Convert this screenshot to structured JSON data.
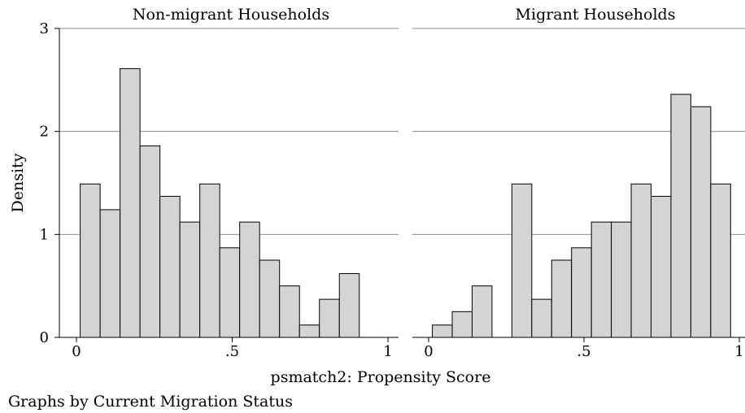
{
  "figure": {
    "ylabel": "Density",
    "xlabel": "psmatch2: Propensity Score",
    "note": "Graphs by Current Migration Status"
  },
  "chart_data": [
    {
      "type": "bar",
      "title": "Non-migrant Households",
      "xlim": [
        0,
        1
      ],
      "ylim": [
        0,
        3
      ],
      "xticks": [
        {
          "value": 0,
          "label": "0"
        },
        {
          "value": 0.5,
          "label": ".5"
        },
        {
          "value": 1,
          "label": "1"
        }
      ],
      "yticks": [
        {
          "value": 0,
          "label": "0"
        },
        {
          "value": 1,
          "label": "1"
        },
        {
          "value": 2,
          "label": "2"
        },
        {
          "value": 3,
          "label": "3"
        }
      ],
      "grid": true,
      "bins": [
        {
          "x0": 0.012,
          "x1": 0.076,
          "value": 1.49
        },
        {
          "x0": 0.076,
          "x1": 0.14,
          "value": 1.24
        },
        {
          "x0": 0.14,
          "x1": 0.204,
          "value": 2.61
        },
        {
          "x0": 0.204,
          "x1": 0.268,
          "value": 1.86
        },
        {
          "x0": 0.268,
          "x1": 0.332,
          "value": 1.37
        },
        {
          "x0": 0.332,
          "x1": 0.396,
          "value": 1.12
        },
        {
          "x0": 0.396,
          "x1": 0.46,
          "value": 1.49
        },
        {
          "x0": 0.46,
          "x1": 0.524,
          "value": 0.87
        },
        {
          "x0": 0.524,
          "x1": 0.588,
          "value": 1.12
        },
        {
          "x0": 0.588,
          "x1": 0.652,
          "value": 0.75
        },
        {
          "x0": 0.652,
          "x1": 0.716,
          "value": 0.5
        },
        {
          "x0": 0.716,
          "x1": 0.78,
          "value": 0.12
        },
        {
          "x0": 0.78,
          "x1": 0.844,
          "value": 0.37
        },
        {
          "x0": 0.844,
          "x1": 0.908,
          "value": 0.62
        }
      ]
    },
    {
      "type": "bar",
      "title": "Migrant Households",
      "xlim": [
        0,
        1
      ],
      "ylim": [
        0,
        3
      ],
      "xticks": [
        {
          "value": 0,
          "label": "0"
        },
        {
          "value": 0.5,
          "label": ".5"
        },
        {
          "value": 1,
          "label": "1"
        }
      ],
      "yticks": [
        {
          "value": 0,
          "label": "0"
        },
        {
          "value": 1,
          "label": "1"
        },
        {
          "value": 2,
          "label": "2"
        },
        {
          "value": 3,
          "label": "3"
        }
      ],
      "grid": true,
      "bins": [
        {
          "x0": 0.012,
          "x1": 0.076,
          "value": 0.12
        },
        {
          "x0": 0.076,
          "x1": 0.14,
          "value": 0.25
        },
        {
          "x0": 0.14,
          "x1": 0.204,
          "value": 0.5
        },
        {
          "x0": 0.268,
          "x1": 0.332,
          "value": 1.49
        },
        {
          "x0": 0.332,
          "x1": 0.396,
          "value": 0.37
        },
        {
          "x0": 0.396,
          "x1": 0.46,
          "value": 0.75
        },
        {
          "x0": 0.46,
          "x1": 0.524,
          "value": 0.87
        },
        {
          "x0": 0.524,
          "x1": 0.588,
          "value": 1.12
        },
        {
          "x0": 0.588,
          "x1": 0.652,
          "value": 1.12
        },
        {
          "x0": 0.652,
          "x1": 0.716,
          "value": 1.49
        },
        {
          "x0": 0.716,
          "x1": 0.78,
          "value": 1.37
        },
        {
          "x0": 0.78,
          "x1": 0.844,
          "value": 2.36
        },
        {
          "x0": 0.844,
          "x1": 0.908,
          "value": 2.24
        },
        {
          "x0": 0.908,
          "x1": 0.972,
          "value": 1.49
        }
      ]
    }
  ]
}
